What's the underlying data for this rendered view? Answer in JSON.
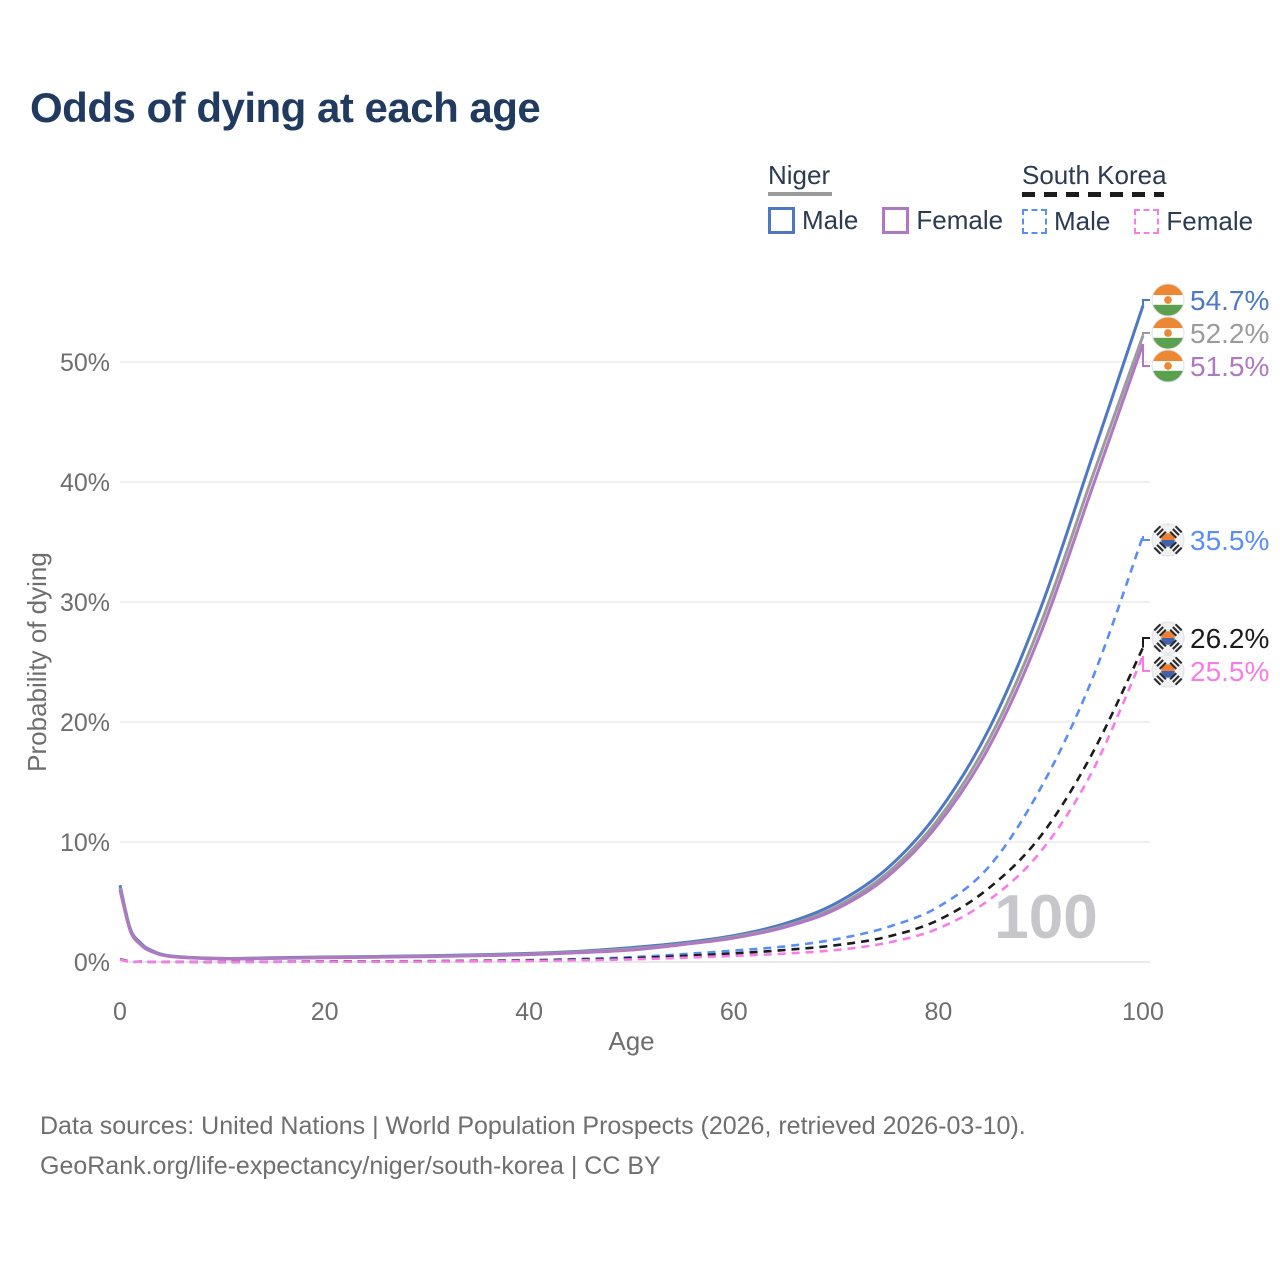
{
  "page": {
    "title": "Odds of dying at each age",
    "footer_line1": "Data sources: United Nations | World Population Prospects (2026, retrieved 2026-03-10).",
    "footer_line2": "GeoRank.org/life-expectancy/niger/south-korea | CC BY",
    "watermark_age_counter": "100"
  },
  "colors": {
    "title": "#203a60",
    "legend_text": "#2c3a52",
    "axis_text": "#6e6e6e",
    "grid": "#ececef",
    "baseline": "#e2e2e6",
    "watermark": "#c7c7cb",
    "footer": "#6f6f6f",
    "flag_ring": "#e0e0e6",
    "icon_bg": "#f1f1f4"
  },
  "legend": {
    "groups": [
      {
        "label": "Niger",
        "line_style": "solid",
        "underline_color": "#9b9b9b",
        "items": [
          {
            "label": "Male",
            "color": "#4d79c4",
            "dashed": false
          },
          {
            "label": "Female",
            "color": "#b077c2",
            "dashed": false
          }
        ]
      },
      {
        "label": "South Korea",
        "line_style": "dashed",
        "underline_color": "#1c1c1c",
        "items": [
          {
            "label": "Male",
            "color": "#5b8ef5",
            "dashed": true
          },
          {
            "label": "Female",
            "color": "#f87ce8",
            "dashed": true
          }
        ]
      }
    ]
  },
  "chart_data": {
    "type": "line",
    "title": "Odds of dying at each age",
    "xlabel": "Age",
    "ylabel": "Probability of dying",
    "xlim": [
      0,
      100
    ],
    "ylim": [
      0,
      57
    ],
    "grid": "horizontal",
    "legend_position": "top-right",
    "xticks": [
      0,
      20,
      40,
      60,
      80,
      100
    ],
    "xtick_labels": [
      "0",
      "20",
      "40",
      "60",
      "80",
      "100"
    ],
    "yticks": [
      0,
      10,
      20,
      30,
      40,
      50
    ],
    "ytick_labels": [
      "0%",
      "10%",
      "20%",
      "30%",
      "40%",
      "50%"
    ],
    "x_age": [
      0,
      1,
      2,
      3,
      5,
      10,
      15,
      20,
      25,
      30,
      35,
      40,
      45,
      50,
      55,
      60,
      65,
      70,
      75,
      80,
      85,
      90,
      95,
      100
    ],
    "series": [
      {
        "id": "niger-male",
        "country": "Niger",
        "group": "Male",
        "color": "#4d79c4",
        "dashed": false,
        "flag": "niger",
        "end_value": 54.7,
        "end_label": "54.7%",
        "values": [
          6.4,
          2.8,
          1.6,
          1.0,
          0.5,
          0.3,
          0.35,
          0.42,
          0.46,
          0.52,
          0.6,
          0.72,
          0.9,
          1.2,
          1.6,
          2.2,
          3.2,
          4.9,
          7.8,
          12.5,
          19.5,
          29.5,
          42.0,
          54.7
        ]
      },
      {
        "id": "niger-overall",
        "country": "Niger",
        "group": "Overall",
        "color": "#9b9b9b",
        "dashed": false,
        "flag": "niger",
        "end_value": 52.2,
        "end_label": "52.2%",
        "values": [
          6.2,
          2.7,
          1.5,
          0.95,
          0.47,
          0.28,
          0.32,
          0.38,
          0.43,
          0.48,
          0.56,
          0.67,
          0.84,
          1.1,
          1.5,
          2.1,
          3.0,
          4.6,
          7.4,
          11.9,
          18.6,
          28.2,
          40.3,
          52.2
        ]
      },
      {
        "id": "niger-female",
        "country": "Niger",
        "group": "Female",
        "color": "#b077c2",
        "dashed": false,
        "flag": "niger",
        "end_value": 51.5,
        "end_label": "51.5%",
        "values": [
          6.0,
          2.6,
          1.45,
          0.9,
          0.45,
          0.26,
          0.3,
          0.35,
          0.4,
          0.45,
          0.52,
          0.62,
          0.78,
          1.0,
          1.45,
          2.0,
          2.9,
          4.4,
          7.1,
          11.5,
          18.0,
          27.4,
          39.4,
          51.5
        ]
      },
      {
        "id": "south-korea-male",
        "country": "South Korea",
        "group": "Male",
        "color": "#5b8ef5",
        "dashed": true,
        "flag": "south-korea",
        "end_value": 35.5,
        "end_label": "35.5%",
        "values": [
          0.25,
          0.04,
          0.03,
          0.02,
          0.015,
          0.012,
          0.03,
          0.05,
          0.06,
          0.08,
          0.11,
          0.16,
          0.25,
          0.4,
          0.65,
          0.95,
          1.3,
          1.9,
          2.9,
          4.6,
          8.0,
          14.5,
          23.5,
          35.5
        ]
      },
      {
        "id": "south-korea-overall",
        "country": "South Korea",
        "group": "Overall",
        "color": "#1c1c1c",
        "dashed": true,
        "flag": "south-korea",
        "end_value": 26.2,
        "end_label": "26.2%",
        "values": [
          0.22,
          0.035,
          0.025,
          0.018,
          0.013,
          0.01,
          0.02,
          0.04,
          0.05,
          0.06,
          0.09,
          0.13,
          0.2,
          0.32,
          0.5,
          0.72,
          1.0,
          1.4,
          2.1,
          3.5,
          6.2,
          10.5,
          17.3,
          26.2
        ]
      },
      {
        "id": "south-korea-female",
        "country": "South Korea",
        "group": "Female",
        "color": "#f87ce8",
        "dashed": true,
        "flag": "south-korea",
        "end_value": 25.5,
        "end_label": "25.5%",
        "values": [
          0.2,
          0.03,
          0.02,
          0.015,
          0.012,
          0.01,
          0.015,
          0.025,
          0.035,
          0.045,
          0.06,
          0.09,
          0.14,
          0.22,
          0.35,
          0.52,
          0.7,
          1.0,
          1.6,
          2.8,
          5.2,
          9.2,
          15.8,
          25.5
        ]
      }
    ]
  }
}
